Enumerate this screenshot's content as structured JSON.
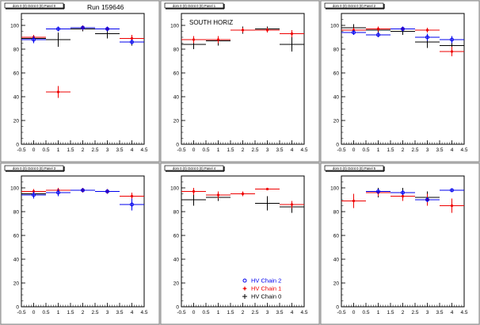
{
  "page": {
    "run_label": "Run 159646"
  },
  "legend": {
    "entries": [
      {
        "label": "HV Chain 2",
        "color": "#0000ee",
        "marker": "open-circle"
      },
      {
        "label": "HV Chain 1",
        "color": "#ee0000",
        "marker": "star"
      },
      {
        "label": "HV Chain 0",
        "color": "#000000",
        "marker": "plus"
      }
    ]
  },
  "chart_data": [
    {
      "type": "scatter",
      "title": "dom 0 (0) Octnt 0 (0) Panel 0",
      "annotation": "",
      "xlim": [
        -0.5,
        4.5
      ],
      "ylim": [
        0,
        110
      ],
      "xticks": [
        "-0.5",
        "0",
        "0.5",
        "1",
        "1.5",
        "2",
        "2.5",
        "3",
        "3.5",
        "4",
        "4.5"
      ],
      "yticks": [
        "0",
        "20",
        "40",
        "60",
        "80",
        "100"
      ],
      "series": [
        {
          "color": "#000000",
          "points": [
            [
              0,
              89,
              0.5,
              3
            ],
            [
              1,
              88,
              0.5,
              6
            ],
            [
              2,
              97,
              0.5,
              2
            ],
            [
              3,
              93,
              0.5,
              4
            ],
            [
              4,
              86,
              0.5,
              3
            ]
          ]
        },
        {
          "color": "#ee0000",
          "points": [
            [
              0,
              90,
              0.5,
              2
            ],
            [
              1,
              44,
              0.5,
              5
            ],
            [
              2,
              98,
              0.5,
              2
            ],
            [
              3,
              97,
              0.5,
              2
            ],
            [
              4,
              89,
              0.5,
              3
            ]
          ]
        },
        {
          "color": "#0000ee",
          "points": [
            [
              0,
              88,
              0.5,
              3
            ],
            [
              1,
              97,
              0.5,
              2
            ],
            [
              2,
              98,
              0.5,
              1
            ],
            [
              3,
              97,
              0.5,
              2
            ],
            [
              4,
              86,
              0.5,
              2
            ]
          ]
        }
      ]
    },
    {
      "type": "scatter",
      "title": "dom 0 (0) Octnt 0 (0) Panel 1",
      "annotation": "SOUTH HORIZ",
      "xlim": [
        -0.5,
        4.5
      ],
      "ylim": [
        0,
        110
      ],
      "xticks": [
        "-0.5",
        "0",
        "0.5",
        "1",
        "1.5",
        "2",
        "2.5",
        "3",
        "3.5",
        "4",
        "4.5"
      ],
      "yticks": [
        "0",
        "20",
        "40",
        "60",
        "80",
        "100"
      ],
      "series": [
        {
          "color": "#000000",
          "points": [
            [
              0,
              84,
              0.5,
              4
            ],
            [
              1,
              87,
              0.5,
              4
            ],
            [
              2,
              96,
              0.5,
              3
            ],
            [
              3,
              97,
              0.5,
              2
            ],
            [
              4,
              84,
              0.5,
              6
            ]
          ]
        },
        {
          "color": "#ee0000",
          "points": [
            [
              0,
              88,
              0.5,
              3
            ],
            [
              1,
              88,
              0.5,
              3
            ],
            [
              2,
              96,
              0.5,
              2
            ],
            [
              3,
              96,
              0.5,
              2
            ],
            [
              4,
              93,
              0.5,
              3
            ]
          ]
        }
      ]
    },
    {
      "type": "scatter",
      "title": "dom 0 (0) Octnt 0 (0) Panel 2",
      "annotation": "",
      "xlim": [
        -0.5,
        4.5
      ],
      "ylim": [
        0,
        110
      ],
      "xticks": [
        "-0.5",
        "0",
        "0.5",
        "1",
        "1.5",
        "2",
        "2.5",
        "3",
        "3.5",
        "4",
        "4.5"
      ],
      "yticks": [
        "0",
        "20",
        "40",
        "60",
        "80",
        "100"
      ],
      "series": [
        {
          "color": "#000000",
          "points": [
            [
              0,
              98,
              0.5,
              3
            ],
            [
              1,
              96,
              0.5,
              2
            ],
            [
              2,
              95,
              0.5,
              3
            ],
            [
              3,
              86,
              0.5,
              5
            ],
            [
              4,
              83,
              0.5,
              4
            ]
          ]
        },
        {
          "color": "#ee0000",
          "points": [
            [
              0,
              96,
              0.5,
              2
            ],
            [
              1,
              97,
              0.5,
              2
            ],
            [
              2,
              97,
              0.5,
              2
            ],
            [
              3,
              96,
              0.5,
              2
            ],
            [
              4,
              78,
              0.5,
              4
            ]
          ]
        },
        {
          "color": "#0000ee",
          "points": [
            [
              0,
              94,
              0.5,
              2
            ],
            [
              1,
              92,
              0.5,
              2
            ],
            [
              2,
              97,
              0.5,
              2
            ],
            [
              3,
              90,
              0.5,
              3
            ],
            [
              4,
              88,
              0.5,
              3
            ]
          ]
        }
      ]
    },
    {
      "type": "scatter",
      "title": "dom 0 (0) Octnt 0 (0) Panel 3",
      "annotation": "",
      "xlim": [
        -0.5,
        4.5
      ],
      "ylim": [
        0,
        110
      ],
      "xticks": [
        "-0.5",
        "0",
        "0.5",
        "1",
        "1.5",
        "2",
        "2.5",
        "3",
        "3.5",
        "4",
        "4.5"
      ],
      "yticks": [
        "0",
        "20",
        "40",
        "60",
        "80",
        "100"
      ],
      "series": [
        {
          "color": "#000000",
          "points": [
            [
              0,
              95,
              0.5,
              2
            ],
            [
              1,
              96,
              0.5,
              2
            ],
            [
              2,
              98,
              0.5,
              1
            ],
            [
              3,
              97,
              0.5,
              1
            ],
            [
              4,
              86,
              0.5,
              5
            ]
          ]
        },
        {
          "color": "#ee0000",
          "points": [
            [
              0,
              97,
              0.5,
              2
            ],
            [
              1,
              98,
              0.5,
              2
            ],
            [
              2,
              98,
              0.5,
              2
            ],
            [
              3,
              97,
              0.5,
              2
            ],
            [
              4,
              93,
              0.5,
              3
            ]
          ]
        },
        {
          "color": "#0000ee",
          "points": [
            [
              0,
              94,
              0.5,
              3
            ],
            [
              1,
              96,
              0.5,
              3
            ],
            [
              2,
              98,
              0.5,
              1
            ],
            [
              3,
              97,
              0.5,
              1
            ],
            [
              4,
              86,
              0.5,
              5
            ]
          ]
        }
      ]
    },
    {
      "type": "scatter",
      "title": "dom 0 (0) Octnt 0 (0) Panel 4",
      "annotation": "",
      "xlim": [
        -0.5,
        4.5
      ],
      "ylim": [
        0,
        110
      ],
      "xticks": [
        "-0.5",
        "0",
        "0.5",
        "1",
        "1.5",
        "2",
        "2.5",
        "3",
        "3.5",
        "4",
        "4.5"
      ],
      "yticks": [
        "0",
        "20",
        "40",
        "60",
        "80",
        "100"
      ],
      "series": [
        {
          "color": "#000000",
          "points": [
            [
              0,
              90,
              0.5,
              5
            ],
            [
              1,
              92,
              0.5,
              3
            ],
            [
              2,
              95,
              0.5,
              2
            ],
            [
              3,
              87,
              0.5,
              6
            ],
            [
              4,
              84,
              0.5,
              5
            ]
          ]
        },
        {
          "color": "#ee0000",
          "points": [
            [
              0,
              97,
              0.5,
              3
            ],
            [
              1,
              94,
              0.5,
              3
            ],
            [
              2,
              95,
              0.5,
              2
            ],
            [
              3,
              99,
              0.5,
              1
            ],
            [
              4,
              86,
              0.5,
              3
            ]
          ]
        }
      ],
      "show_legend": true
    },
    {
      "type": "scatter",
      "title": "dom 0 (0) Octnt 0 (0) Panel 5",
      "annotation": "",
      "xlim": [
        -0.5,
        4.5
      ],
      "ylim": [
        0,
        110
      ],
      "xticks": [
        "-0.5",
        "0",
        "0.5",
        "1",
        "1.5",
        "2",
        "2.5",
        "3",
        "3.5",
        "4",
        "4.5"
      ],
      "yticks": [
        "0",
        "20",
        "40",
        "60",
        "80",
        "100"
      ],
      "series": [
        {
          "color": "#000000",
          "points": [
            [
              0,
              89,
              0.5,
              6
            ],
            [
              1,
              96,
              0.5,
              4
            ],
            [
              2,
              96,
              0.5,
              4
            ],
            [
              3,
              92,
              0.5,
              5
            ],
            [
              4,
              85,
              0.5,
              6
            ]
          ]
        },
        {
          "color": "#ee0000",
          "points": [
            [
              0,
              89,
              0.5,
              6
            ],
            [
              1,
              96,
              0.5,
              3
            ],
            [
              2,
              93,
              0.5,
              4
            ],
            [
              3,
              90,
              0.5,
              5
            ],
            [
              4,
              85,
              0.5,
              6
            ]
          ]
        },
        {
          "color": "#0000ee",
          "points": [
            [
              1,
              97,
              0.5,
              2
            ],
            [
              2,
              96,
              0.5,
              2
            ],
            [
              3,
              90,
              0.5,
              2
            ],
            [
              4,
              98,
              0.5,
              1
            ]
          ]
        }
      ]
    }
  ]
}
